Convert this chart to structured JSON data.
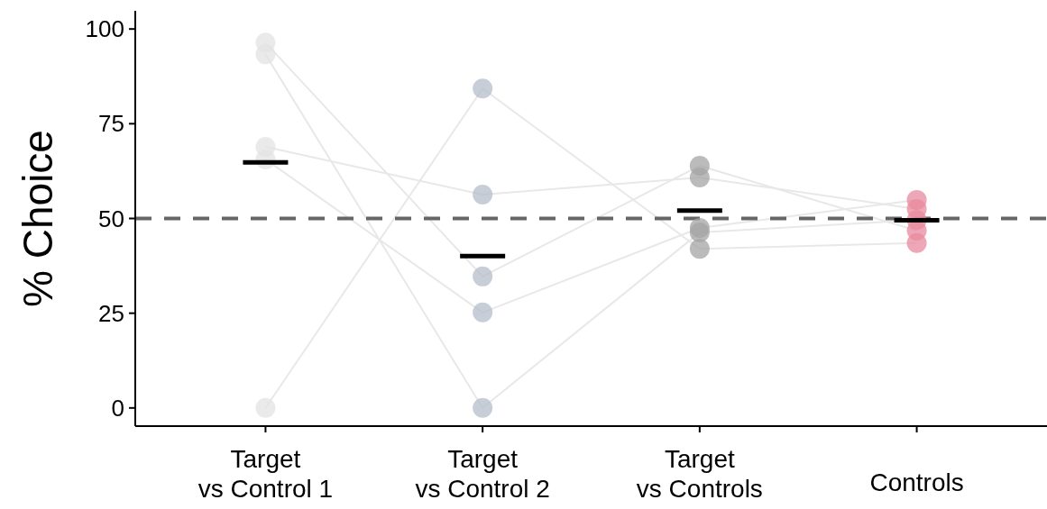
{
  "chart_data": {
    "type": "scatter",
    "ylabel": "% Choice",
    "categories": [
      "Target\nvs Control 1",
      "Target\nvs Control 2",
      "Target\nvs Controls",
      "Controls"
    ],
    "ylim": [
      -4.8,
      104.8
    ],
    "yticks": [
      0,
      25,
      50,
      75,
      100
    ],
    "grid": false,
    "ref_lines": [
      {
        "axis": "y",
        "value": 50,
        "color": "#666666",
        "line_style": "dashed"
      }
    ],
    "series": [
      {
        "type": "line",
        "color": "#e8e8e8",
        "marker": "none",
        "values": [
          96.4,
          34.7,
          63.9,
          46.8
        ]
      },
      {
        "type": "line",
        "color": "#e8e8e8",
        "marker": "none",
        "values": [
          93.3,
          0,
          46.3,
          49.6
        ]
      },
      {
        "type": "line",
        "color": "#e8e8e8",
        "marker": "none",
        "values": [
          68.9,
          56.3,
          60.8,
          52.5
        ]
      },
      {
        "type": "line",
        "color": "#e8e8e8",
        "marker": "none",
        "values": [
          65.6,
          25.2,
          47.5,
          54.9
        ]
      },
      {
        "type": "line",
        "color": "#e8e8e8",
        "marker": "none",
        "values": [
          0,
          84.3,
          42,
          43.5
        ]
      },
      {
        "color": "#e3e3e3",
        "marker": "circle",
        "x": [
          "Target\nvs Control 1",
          "Target\nvs Control 1",
          "Target\nvs Control 1",
          "Target\nvs Control 1",
          "Target\nvs Control 1"
        ],
        "values": [
          96.4,
          93.3,
          68.9,
          65.6,
          0
        ]
      },
      {
        "color": "#b6bdca",
        "marker": "circle",
        "x": [
          "Target\nvs Control 2",
          "Target\nvs Control 2",
          "Target\nvs Control 2",
          "Target\nvs Control 2",
          "Target\nvs Control 2"
        ],
        "values": [
          84.3,
          56.3,
          34.7,
          25.2,
          0
        ]
      },
      {
        "color": "#a4a4a4",
        "marker": "circle",
        "x": [
          "Target\nvs Controls",
          "Target\nvs Controls",
          "Target\nvs Controls",
          "Target\nvs Controls",
          "Target\nvs Controls"
        ],
        "values": [
          63.9,
          60.8,
          47.5,
          46.3,
          42
        ]
      },
      {
        "color": "#e8899e",
        "marker": "circle",
        "x": [
          "Controls",
          "Controls",
          "Controls",
          "Controls",
          "Controls"
        ],
        "values": [
          54.9,
          52.5,
          49.6,
          46.8,
          43.5
        ]
      },
      {
        "type": "box",
        "color": "#000000",
        "boxes": [
          {
            "low": 64.8,
            "q1": 64.8,
            "median": 64.8,
            "q3": 64.8,
            "high": 64.8
          },
          {
            "low": 40.1,
            "q1": 40.1,
            "median": 40.1,
            "q3": 40.1,
            "high": 40.1
          },
          {
            "low": 52.1,
            "q1": 52.1,
            "median": 52.1,
            "q3": 52.1,
            "high": 52.1
          },
          {
            "low": 49.5,
            "q1": 49.5,
            "median": 49.5,
            "q3": 49.5,
            "high": 49.5
          }
        ]
      }
    ]
  }
}
